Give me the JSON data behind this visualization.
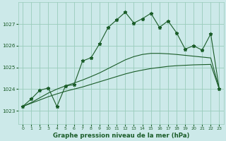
{
  "title": "Graphe pression niveau de la mer (hPa)",
  "bg_color": "#cce9e9",
  "grid_color": "#99ccbb",
  "line_color": "#1a5c28",
  "xlim": [
    -0.5,
    23.5
  ],
  "ylim": [
    1022.4,
    1028.0
  ],
  "yticks": [
    1023,
    1024,
    1025,
    1026,
    1027
  ],
  "xticks": [
    0,
    1,
    2,
    3,
    4,
    5,
    6,
    7,
    8,
    9,
    10,
    11,
    12,
    13,
    14,
    15,
    16,
    17,
    18,
    19,
    20,
    21,
    22,
    23
  ],
  "pressure_data": [
    1023.2,
    1023.55,
    1023.95,
    1024.05,
    1023.2,
    1024.15,
    1024.2,
    1025.3,
    1025.45,
    1026.1,
    1026.85,
    1027.2,
    1027.55,
    1027.05,
    1027.25,
    1027.5,
    1026.85,
    1027.15,
    1026.6,
    1025.85,
    1026.0,
    1025.8,
    1026.55,
    1024.0
  ],
  "smooth_low": [
    1023.2,
    1023.35,
    1023.5,
    1023.65,
    1023.78,
    1023.9,
    1024.0,
    1024.1,
    1024.22,
    1024.34,
    1024.46,
    1024.58,
    1024.7,
    1024.8,
    1024.88,
    1024.95,
    1025.0,
    1025.05,
    1025.08,
    1025.1,
    1025.12,
    1025.13,
    1025.14,
    1024.0
  ],
  "smooth_high": [
    1023.2,
    1023.38,
    1023.6,
    1023.82,
    1024.0,
    1024.15,
    1024.28,
    1024.42,
    1024.58,
    1024.75,
    1024.95,
    1025.15,
    1025.35,
    1025.5,
    1025.6,
    1025.65,
    1025.65,
    1025.63,
    1025.6,
    1025.56,
    1025.52,
    1025.48,
    1025.44,
    1024.0
  ]
}
